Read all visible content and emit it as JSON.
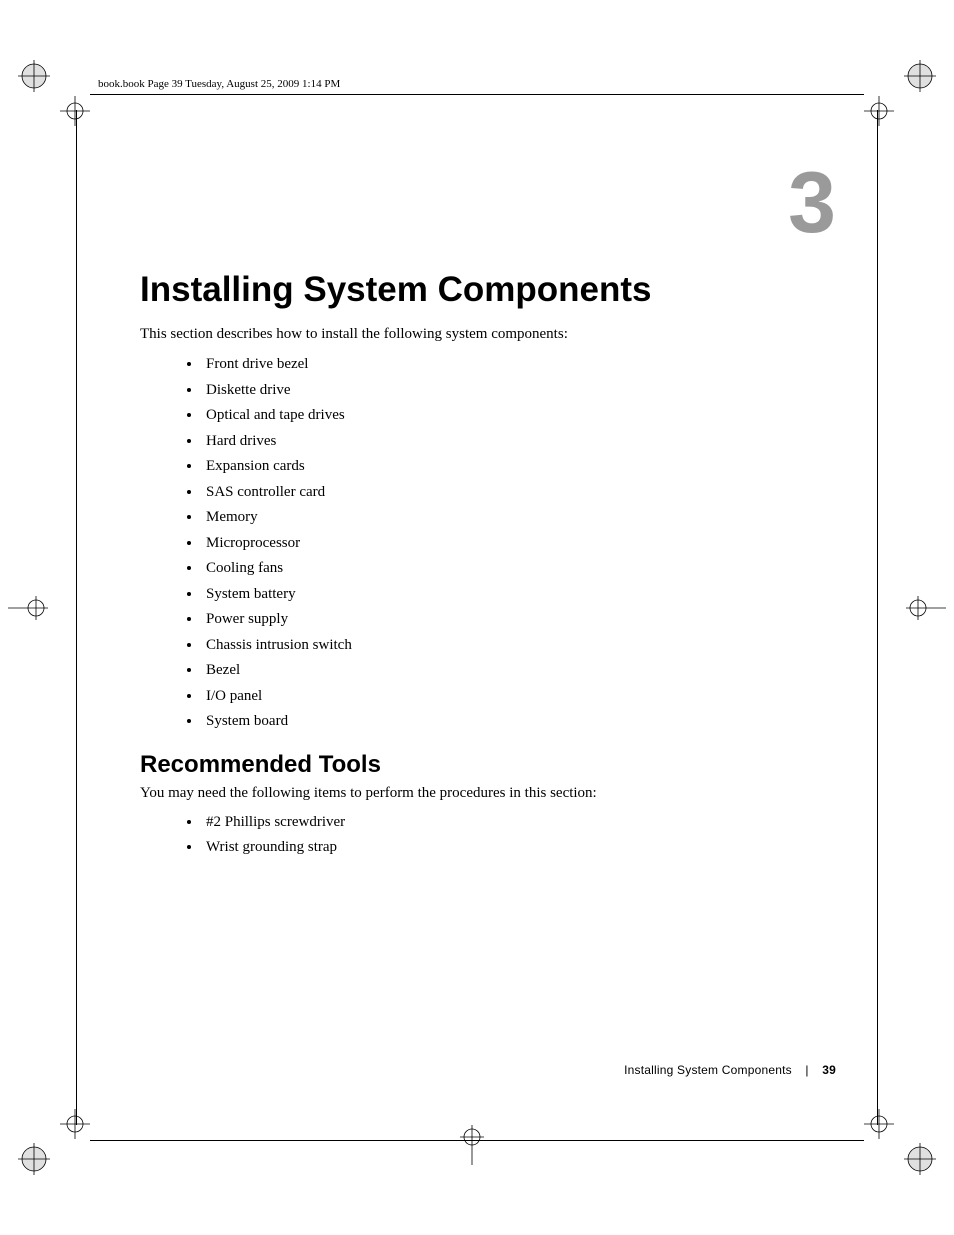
{
  "colors": {
    "page_bg": "#ffffff",
    "text": "#000000",
    "chapter_num": "#9a9a9a",
    "crop_line": "#000000"
  },
  "typography": {
    "body_font": "Georgia, serif",
    "heading_font": "Arial Narrow, Arial, sans-serif",
    "h1_size_pt": 26,
    "h2_size_pt": 18,
    "body_size_pt": 11,
    "chapter_num_size_pt": 64,
    "chapter_num_weight": 900
  },
  "running_header": "book.book  Page 39  Tuesday, August 25, 2009  1:14 PM",
  "chapter_number": "3",
  "title": "Installing System Components",
  "intro": "This section describes how to install the following system components:",
  "components": [
    "Front drive bezel",
    "Diskette drive",
    "Optical and tape drives",
    "Hard drives",
    "Expansion cards",
    "SAS controller card",
    "Memory",
    "Microprocessor",
    "Cooling fans",
    "System battery",
    "Power supply",
    "Chassis intrusion switch",
    "Bezel",
    "I/O panel",
    "System board"
  ],
  "tools_heading": "Recommended Tools",
  "tools_intro": "You may need the following items to perform the procedures in this section:",
  "tools": [
    "#2 Phillips screwdriver",
    "Wrist grounding strap"
  ],
  "footer": {
    "section": "Installing System Components",
    "separator": "|",
    "page_number": "39"
  }
}
